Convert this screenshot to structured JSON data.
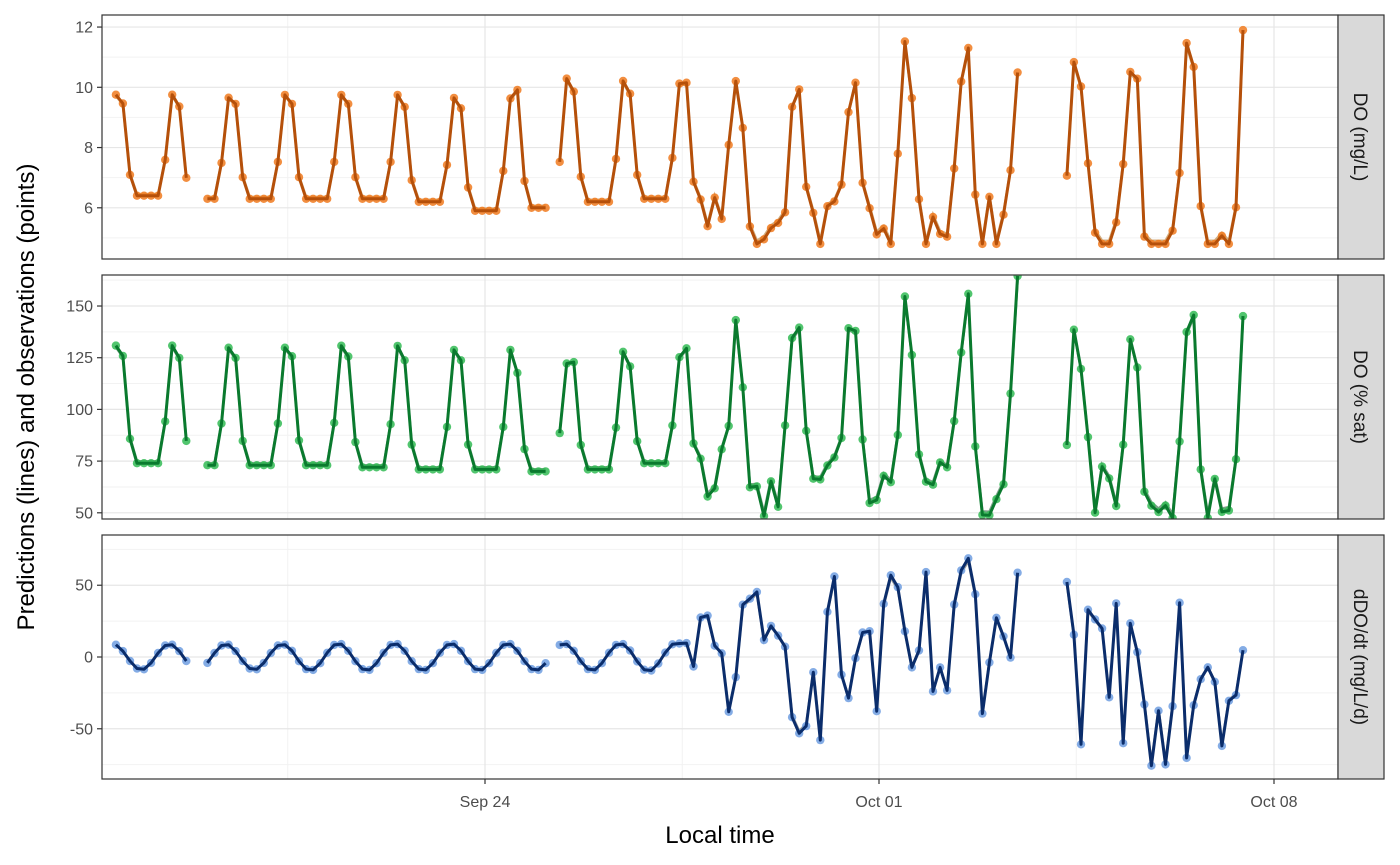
{
  "chart_data": {
    "type": "line",
    "xlabel": "Local time",
    "ylabel": "Predictions (lines) and observations (points)",
    "x_ticks": [
      "Sep 24",
      "Oct 01",
      "Oct 08"
    ],
    "x_range": [
      "2023-09-17",
      "2023-10-08"
    ],
    "grid": true,
    "legend": "none",
    "panels": [
      {
        "strip_label": "DO (mg/L)",
        "ylim": [
          4.3,
          12.4
        ],
        "y_ticks": [
          6,
          8,
          10,
          12
        ],
        "obs_color": "#f07a1e",
        "pred_color": "#b5500a",
        "model_color": "#c8965a",
        "series": [
          {
            "role": "observations",
            "shape": "points",
            "encoding": "daily cycles: [date, daily min, daily max]",
            "values": [
              [
                "2023-09-18",
                6.4,
                10.0
              ],
              [
                "2023-09-19",
                6.3,
                9.9
              ],
              [
                "2023-09-20",
                6.3,
                10.0
              ],
              [
                "2023-09-21",
                6.3,
                10.0
              ],
              [
                "2023-09-22",
                6.3,
                10.0
              ],
              [
                "2023-09-23",
                6.2,
                9.9
              ],
              [
                "2023-09-24",
                5.9,
                9.9
              ],
              [
                "2023-09-25",
                6.0,
                10.6
              ],
              [
                "2023-09-26",
                6.2,
                10.5
              ],
              [
                "2023-09-27",
                6.3,
                10.4
              ],
              [
                "2023-09-28",
                5.9,
                10.9
              ],
              [
                "2023-09-29",
                5.0,
                9.8
              ],
              [
                "2023-09-30",
                5.5,
                10.2
              ],
              [
                "2023-10-01",
                5.2,
                11.1
              ],
              [
                "2023-10-02",
                5.4,
                10.5
              ],
              [
                "2023-10-03",
                5.5,
                11.9
              ],
              [
                "2023-10-04",
                6.2,
                10.4
              ],
              [
                "2023-10-05",
                5.3,
                11.4
              ],
              [
                "2023-10-06",
                4.6,
                11.0
              ],
              [
                "2023-10-07",
                4.7,
                12.1
              ]
            ]
          },
          {
            "role": "predictions",
            "shape": "line",
            "values": [
              [
                "2023-09-18",
                6.4,
                10.0
              ],
              [
                "2023-09-24",
                5.9,
                9.9
              ],
              [
                "2023-10-01",
                5.2,
                11.1
              ],
              [
                "2023-10-07",
                4.7,
                12.1
              ]
            ]
          }
        ]
      },
      {
        "strip_label": "DO (% sat)",
        "ylim": [
          47,
          165
        ],
        "y_ticks": [
          50,
          75,
          100,
          125,
          150
        ],
        "obs_color": "#33bb55",
        "pred_color": "#0a7a2e",
        "model_color": "#5a8a6a",
        "series": [
          {
            "role": "observations",
            "shape": "points",
            "encoding": "daily cycles: [date, daily min, daily max]",
            "values": [
              [
                "2023-09-18",
                74,
                135
              ],
              [
                "2023-09-19",
                73,
                134
              ],
              [
                "2023-09-20",
                73,
                134
              ],
              [
                "2023-09-21",
                73,
                135
              ],
              [
                "2023-09-22",
                72,
                135
              ],
              [
                "2023-09-23",
                71,
                133
              ],
              [
                "2023-09-24",
                71,
                133
              ],
              [
                "2023-09-25",
                70,
                126
              ],
              [
                "2023-09-26",
                71,
                132
              ],
              [
                "2023-09-27",
                74,
                129
              ],
              [
                "2023-09-28",
                70,
                140
              ],
              [
                "2023-09-29",
                60,
                133
              ],
              [
                "2023-09-30",
                65,
                140
              ],
              [
                "2023-10-01",
                62,
                152
              ],
              [
                "2023-10-02",
                64,
                139
              ],
              [
                "2023-10-03",
                60,
                160
              ],
              [
                "2023-10-04",
                72,
                136
              ],
              [
                "2023-10-05",
                62,
                140
              ],
              [
                "2023-10-06",
                53,
                130
              ],
              [
                "2023-10-07",
                55,
                149
              ]
            ]
          },
          {
            "role": "predictions",
            "shape": "line",
            "values": [
              [
                "2023-09-18",
                74,
                135
              ],
              [
                "2023-09-24",
                71,
                133
              ],
              [
                "2023-10-01",
                62,
                152
              ],
              [
                "2023-10-07",
                55,
                149
              ]
            ]
          }
        ]
      },
      {
        "strip_label": "dDO/dt (mg/L/d)",
        "ylim": [
          -85,
          85
        ],
        "y_ticks": [
          -50,
          0,
          50
        ],
        "obs_color": "#6e9ee0",
        "pred_color": "#0b2d6b",
        "model_color": "#888888",
        "series": [
          {
            "role": "observations",
            "shape": "points",
            "encoding": "daily ranges: [date, daily min, daily max]",
            "values": [
              [
                "2023-09-18",
                -20,
                20
              ],
              [
                "2023-09-19",
                -20,
                20
              ],
              [
                "2023-09-20",
                -20,
                20
              ],
              [
                "2023-09-21",
                -22,
                20
              ],
              [
                "2023-09-22",
                -22,
                20
              ],
              [
                "2023-09-23",
                -22,
                20
              ],
              [
                "2023-09-24",
                -22,
                20
              ],
              [
                "2023-09-25",
                -22,
                20
              ],
              [
                "2023-09-26",
                -22,
                20
              ],
              [
                "2023-09-27",
                -22,
                22
              ],
              [
                "2023-09-28",
                -55,
                40
              ],
              [
                "2023-09-29",
                -55,
                45
              ],
              [
                "2023-09-30",
                -62,
                58
              ],
              [
                "2023-10-01",
                -65,
                50
              ],
              [
                "2023-10-02",
                -68,
                55
              ],
              [
                "2023-10-03",
                -70,
                80
              ],
              [
                "2023-10-04",
                -60,
                62
              ],
              [
                "2023-10-05",
                -70,
                73
              ],
              [
                "2023-10-06",
                -82,
                70
              ],
              [
                "2023-10-07",
                -75,
                72
              ]
            ]
          },
          {
            "role": "predictions",
            "shape": "line",
            "values": [
              [
                "2023-09-18",
                -20,
                20
              ],
              [
                "2023-09-24",
                -22,
                20
              ],
              [
                "2023-10-01",
                -65,
                50
              ],
              [
                "2023-10-07",
                -75,
                72
              ]
            ]
          }
        ]
      }
    ]
  }
}
